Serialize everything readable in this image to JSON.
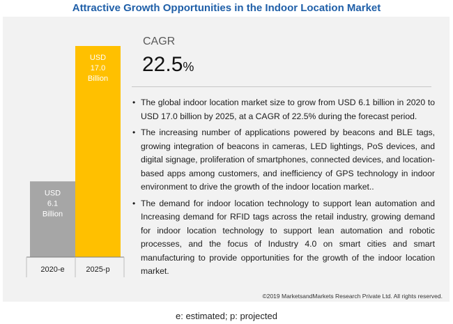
{
  "title": "Attractive Growth Opportunities in the Indoor Location Market",
  "chart_data": {
    "type": "bar",
    "categories": [
      "2020-e",
      "2025-p"
    ],
    "values": [
      6.1,
      17.0
    ],
    "unit": "USD Billion",
    "bar_labels": [
      [
        "USD",
        "6.1",
        "Billion"
      ],
      [
        "USD",
        "17.0",
        "Billion"
      ]
    ],
    "colors": [
      "#a6a6a6",
      "#ffc000"
    ],
    "ylim": [
      0,
      17.0
    ],
    "grid": false,
    "title": "",
    "xlabel": "",
    "ylabel": ""
  },
  "cagr": {
    "label": "CAGR",
    "value": "22.5",
    "unit": "%"
  },
  "bullets": [
    "The global indoor location market size to grow from USD 6.1 billion in 2020 to USD 17.0 billion by 2025, at a CAGR of 22.5% during the forecast period.",
    "The increasing number of applications powered by beacons and BLE tags, growing integration of beacons in cameras, LED lightings, PoS devices, and digital signage, proliferation of smartphones, connected devices, and location-based apps among customers, and inefficiency of GPS technology in indoor environment to drive the growth of the indoor location market..",
    "The demand for indoor location technology to support lean automation and Increasing demand for RFID tags across the retail industry, growing demand for indoor location technology to support lean automation and robotic processes, and the focus of Industry 4.0 on smart cities and smart manufacturing to provide opportunities for the growth of the indoor location market."
  ],
  "bullet_symbol": "•",
  "copyright": "©2019 MarketsandMarkets Research Private Ltd. All rights reserved.",
  "footnote": "e: estimated; p: projected"
}
